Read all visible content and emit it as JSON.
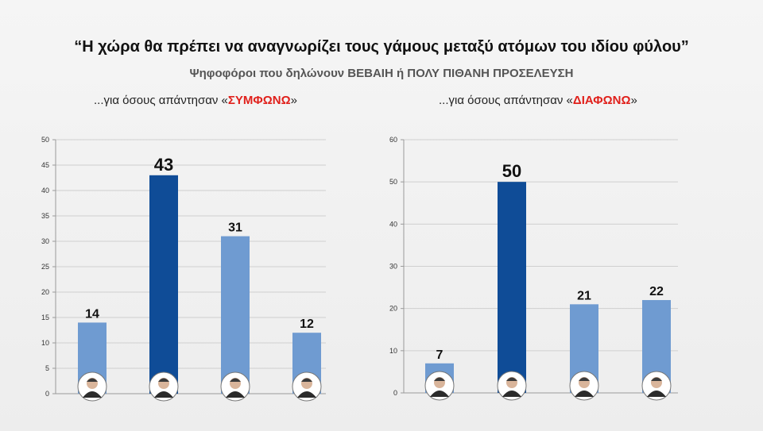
{
  "header": {
    "title": "“Η χώρα θα πρέπει να αναγνωρίζει τους γάμους μεταξύ ατόμων του ιδίου φύλου”",
    "subtitle": "Ψηφοφόροι που δηλώνουν ΒΕΒΑΙΗ ή ΠΟΛΥ ΠΙΘΑΝΗ ΠΡΟΣΕΛΕΥΣΗ"
  },
  "left_panel": {
    "title_prefix": "...για όσους απάντησαν «",
    "title_highlight": "ΣΥΜΦΩΝΩ",
    "title_suffix": "»"
  },
  "right_panel": {
    "title_prefix": "...για όσους απάντησαν «",
    "title_highlight": "ΔΙΑΦΩΝΩ",
    "title_suffix": "»"
  },
  "chart_data": [
    {
      "type": "bar",
      "categories": [
        "",
        "",
        "",
        ""
      ],
      "values": [
        14,
        43,
        31,
        12
      ],
      "highlight_index": 1,
      "ylim": [
        0,
        50
      ],
      "ytick_step": 5,
      "grid": true,
      "colors": {
        "bar": "#6f9bd1",
        "highlight": "#0f4c97"
      }
    },
    {
      "type": "bar",
      "categories": [
        "",
        "",
        "",
        ""
      ],
      "values": [
        7,
        50,
        21,
        22
      ],
      "highlight_index": 1,
      "ylim": [
        0,
        60
      ],
      "ytick_step": 10,
      "grid": true,
      "colors": {
        "bar": "#6f9bd1",
        "highlight": "#0f4c97"
      }
    }
  ]
}
